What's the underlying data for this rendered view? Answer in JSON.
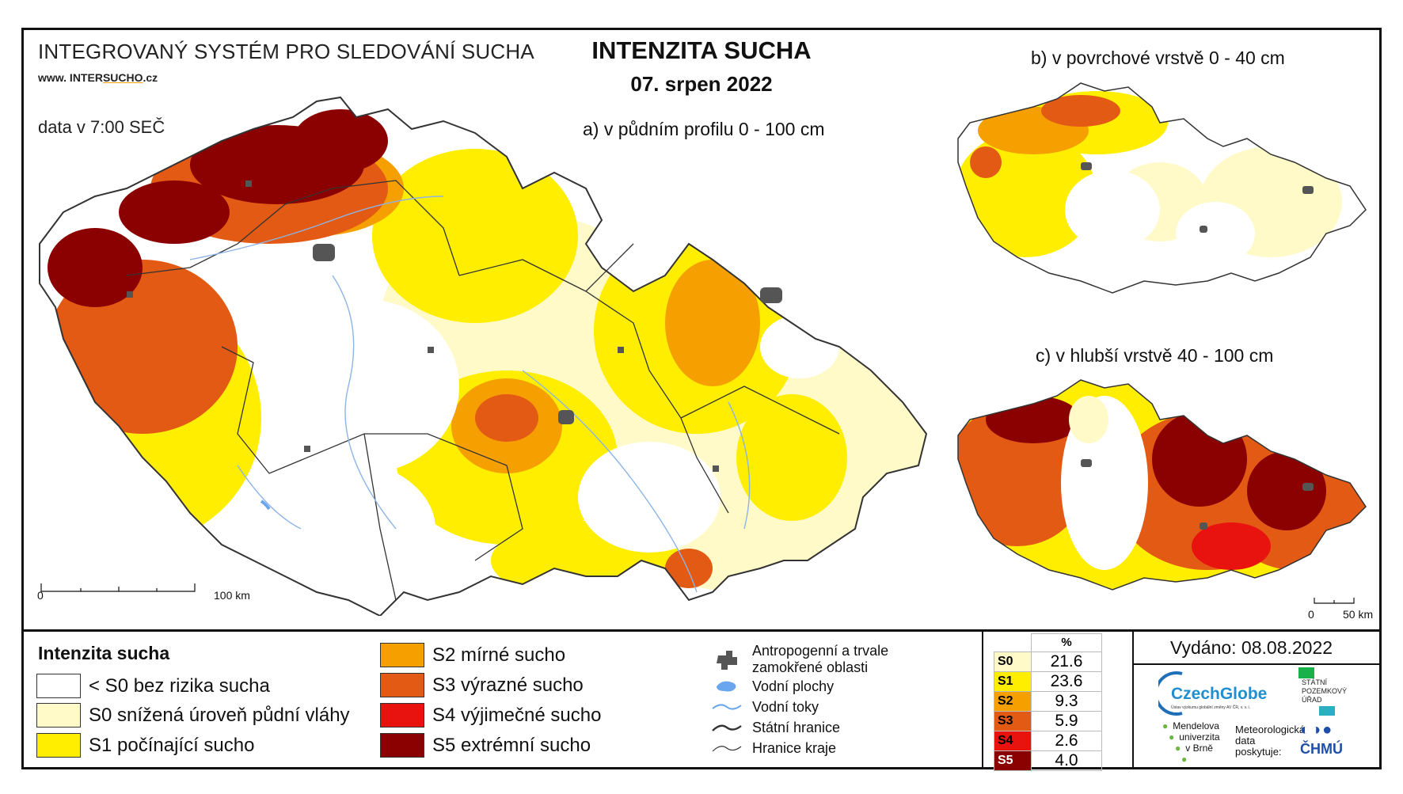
{
  "header": {
    "system_name": "INTEGROVANÝ SYSTÉM PRO SLEDOVÁNÍ SUCHA",
    "website_prefix": "www. INTER",
    "website_mid": "SUCHO",
    "website_suffix": ".cz",
    "data_time": "data v 7:00 SEČ",
    "title": "INTENZITA SUCHA",
    "date": "07. srpen 2022"
  },
  "maps": {
    "a_label": "a) v půdním profilu 0 - 100 cm",
    "b_label": "b) v povrchové vrstvě 0 - 40 cm",
    "c_label": "c) v hlubší vrstvě 40 - 100 cm",
    "scale_a": {
      "start": "0",
      "end": "100 km"
    },
    "scale_c": {
      "start": "0",
      "end": "50 km"
    }
  },
  "legend": {
    "title": "Intenzita sucha",
    "classes": [
      {
        "label": "< S0 bez rizika sucha",
        "color": "#ffffff"
      },
      {
        "label": "S0 snížená úroveň půdní vláhy",
        "color": "#fffac8"
      },
      {
        "label": "S1 počínající sucho",
        "color": "#ffee00"
      },
      {
        "label": "S2 mírné sucho",
        "color": "#f5a000"
      },
      {
        "label": "S3 výrazné sucho",
        "color": "#e35a14"
      },
      {
        "label": "S4 výjimečné sucho",
        "color": "#e8130f"
      },
      {
        "label": "S5 extrémní sucho",
        "color": "#8b0000"
      }
    ],
    "features": [
      {
        "label": "Antropogenní a trvale zamokřené oblasti",
        "icon": "urban-area-icon"
      },
      {
        "label": "Vodní plochy",
        "icon": "water-body-icon"
      },
      {
        "label": "Vodní toky",
        "icon": "river-icon"
      },
      {
        "label": "Státní hranice",
        "icon": "state-border-icon"
      },
      {
        "label": "Hranice kraje",
        "icon": "region-border-icon"
      }
    ]
  },
  "stats": {
    "header": "%",
    "rows": [
      {
        "cls": "S0",
        "value": "21.6",
        "color": "#fffac8"
      },
      {
        "cls": "S1",
        "value": "23.6",
        "color": "#ffee00"
      },
      {
        "cls": "S2",
        "value": "9.3",
        "color": "#f5a000"
      },
      {
        "cls": "S3",
        "value": "5.9",
        "color": "#e35a14"
      },
      {
        "cls": "S4",
        "value": "2.6",
        "color": "#e8130f"
      },
      {
        "cls": "S5",
        "value": "4.0",
        "color": "#8b0000"
      }
    ]
  },
  "issued": "Vydáno: 08.08.2022",
  "logos": {
    "czechglobe": "CzechGlobe",
    "czechglobe_sub": "Ústav výzkumu globální změny AV ČR, v. v. i.",
    "spu_line1": "STÁTNÍ",
    "spu_line2": "POZEMKOVÝ",
    "spu_line3": "ÚŘAD",
    "mendelu_line1": "Mendelova",
    "mendelu_line2": "univerzita",
    "mendelu_line3": "v Brně",
    "meteo_line1": "Meteorologická",
    "meteo_line2": "data",
    "meteo_line3": "poskytuje:",
    "chmu": "ČHMÚ"
  }
}
